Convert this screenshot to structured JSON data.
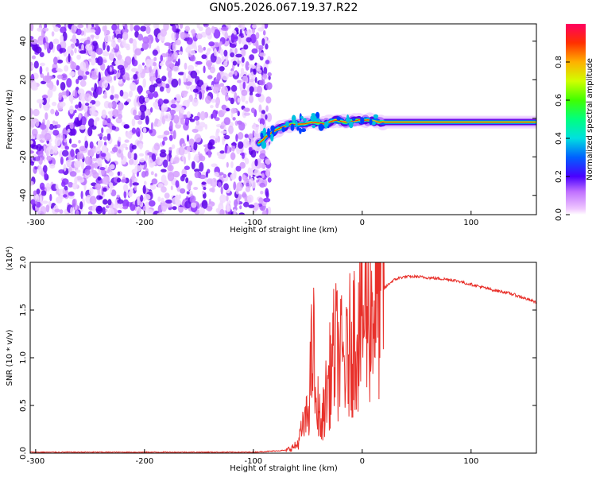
{
  "title": "GN05.2026.067.19.37.R22",
  "chart_data": [
    {
      "type": "heatmap",
      "xlabel": "Height of straight line (km)",
      "ylabel": "Frequency (Hz)",
      "xlim": [
        -305,
        160
      ],
      "ylim": [
        -50,
        49
      ],
      "x_ticks": [
        -300,
        -200,
        -100,
        0,
        100
      ],
      "y_ticks": [
        -40,
        -20,
        0,
        20,
        40
      ],
      "colorbar": {
        "label": "Normalized spectral amplitude",
        "range": [
          0,
          1
        ],
        "ticks": [
          "0.0",
          "0.2",
          "0.4",
          "0.6",
          "0.8"
        ],
        "tick_values": [
          0.0,
          0.2,
          0.4,
          0.6,
          0.8
        ]
      },
      "noise_region_x": [
        -305,
        -85
      ],
      "ridge": {
        "x": [
          -95,
          -85,
          -75,
          -65,
          -55,
          -45,
          -35,
          -25,
          -15,
          -5,
          5,
          15,
          30,
          60,
          100,
          160
        ],
        "freq": [
          -13,
          -8,
          -5,
          -3,
          -3,
          -2,
          -3,
          -1,
          -2,
          -1,
          -1,
          -2,
          -2,
          -2,
          -2,
          -2
        ]
      }
    },
    {
      "type": "line",
      "xlabel": "Height of straight line (km)",
      "ylabel": "SNR (10 * v/v)",
      "y_multiplier": "(x10⁴)",
      "xlim": [
        -305,
        160
      ],
      "ylim": [
        0,
        2
      ],
      "x_ticks": [
        -300,
        -200,
        -100,
        0,
        100
      ],
      "y_ticks": [
        "0.0",
        "0.5",
        "1.0",
        "1.5",
        "2.0"
      ],
      "y_tick_values": [
        0,
        0.5,
        1.0,
        1.5,
        2.0
      ],
      "series": [
        {
          "color": "#e8302a",
          "x": [
            -305,
            -100,
            -70,
            -60,
            -55,
            -50,
            -45,
            -42,
            -40,
            -38,
            -35,
            -30,
            -25,
            -20,
            -15,
            -10,
            -5,
            0,
            5,
            10,
            15,
            20,
            25,
            30,
            35,
            40,
            50,
            60,
            70,
            80,
            90,
            95,
            100,
            110,
            120,
            130,
            140,
            150,
            160
          ],
          "y": [
            0.01,
            0.01,
            0.03,
            0.08,
            0.25,
            0.4,
            1.2,
            0.3,
            0.6,
            0.2,
            0.5,
            0.8,
            1.1,
            1.0,
            0.9,
            1.2,
            1.3,
            1.4,
            1.5,
            1.55,
            1.65,
            1.72,
            1.78,
            1.82,
            1.84,
            1.85,
            1.85,
            1.84,
            1.83,
            1.82,
            1.8,
            1.78,
            1.77,
            1.74,
            1.71,
            1.69,
            1.66,
            1.62,
            1.58
          ]
        }
      ]
    }
  ]
}
